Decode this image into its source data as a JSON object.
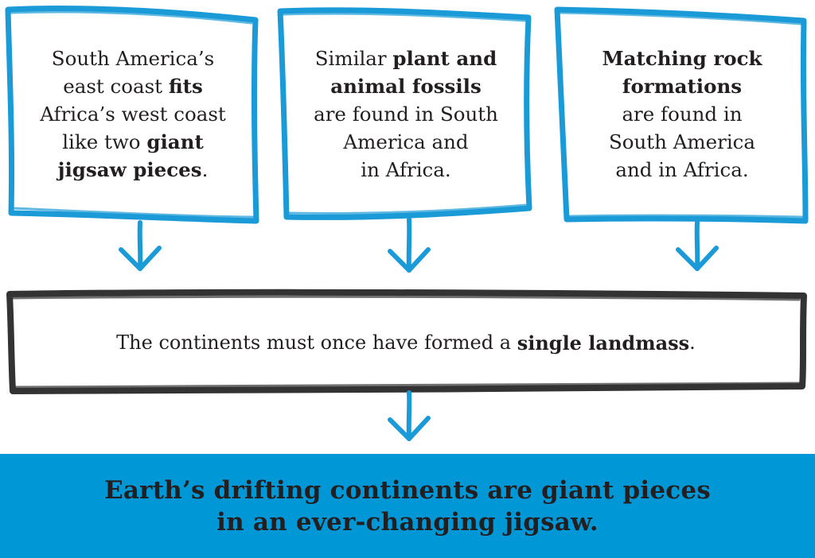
{
  "colors": {
    "accent_blue": "#1a9ad6",
    "outline_dark": "#333333",
    "banner_blue": "#0097d7",
    "text": "#231f20"
  },
  "evidence": [
    {
      "segments": [
        {
          "text": "South America’s",
          "bold": false
        },
        {
          "text": "east coast ",
          "bold": false
        },
        {
          "text": "fits",
          "bold": true
        },
        {
          "text": "Africa’s west coast",
          "bold": false
        },
        {
          "text": "like two ",
          "bold": false
        },
        {
          "text": "giant",
          "bold": true
        },
        {
          "text": "jigsaw pieces",
          "bold": true
        },
        {
          "text": ".",
          "bold": false
        }
      ],
      "lines": [
        [
          0
        ],
        [
          1,
          2
        ],
        [
          3
        ],
        [
          4,
          5
        ],
        [
          6,
          7
        ]
      ]
    },
    {
      "segments": [
        {
          "text": "Similar ",
          "bold": false
        },
        {
          "text": "plant and",
          "bold": true
        },
        {
          "text": "animal fossils",
          "bold": true
        },
        {
          "text": "are found in South",
          "bold": false
        },
        {
          "text": "America and",
          "bold": false
        },
        {
          "text": "in Africa.",
          "bold": false
        }
      ],
      "lines": [
        [
          0,
          1
        ],
        [
          2
        ],
        [
          3
        ],
        [
          4
        ],
        [
          5
        ]
      ]
    },
    {
      "segments": [
        {
          "text": "Matching rock",
          "bold": true
        },
        {
          "text": "formations",
          "bold": true
        },
        {
          "text": "are found in",
          "bold": false
        },
        {
          "text": "South America",
          "bold": false
        },
        {
          "text": "and in Africa.",
          "bold": false
        }
      ],
      "lines": [
        [
          0
        ],
        [
          1
        ],
        [
          2
        ],
        [
          3
        ],
        [
          4
        ]
      ]
    }
  ],
  "inference": {
    "text_before": "The continents must once have formed a ",
    "text_bold": "single landmass",
    "text_after": "."
  },
  "conclusion": {
    "line1": "Earth’s drifting continents are giant pieces",
    "line2": "in an ever-changing jigsaw."
  }
}
